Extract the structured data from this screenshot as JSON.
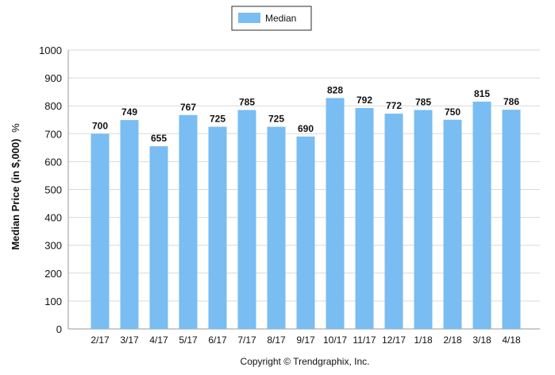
{
  "chart_data": {
    "type": "bar",
    "categories": [
      "2/17",
      "3/17",
      "4/17",
      "5/17",
      "6/17",
      "7/17",
      "8/17",
      "9/17",
      "10/17",
      "11/17",
      "12/17",
      "1/18",
      "2/18",
      "3/18",
      "4/18"
    ],
    "series": [
      {
        "name": "Median",
        "values": [
          700,
          749,
          655,
          767,
          725,
          785,
          725,
          690,
          828,
          792,
          772,
          785,
          750,
          815,
          786
        ]
      }
    ],
    "data_labels": [
      "700",
      "749",
      "655",
      "767",
      "725",
      "785",
      "725",
      "690",
      "828",
      "792",
      "772",
      "785",
      "750",
      "815",
      "786"
    ],
    "ylabel": "Median Price (in $,000)",
    "ylabel_suffix": "%",
    "ylim": [
      0,
      1000
    ],
    "yticks": [
      0,
      100,
      200,
      300,
      400,
      500,
      600,
      700,
      800,
      900,
      1000
    ],
    "grid": true,
    "legend_position": "top-center",
    "bar_color": "#79bdf2",
    "footer": "Copyright © Trendgraphix, Inc."
  }
}
